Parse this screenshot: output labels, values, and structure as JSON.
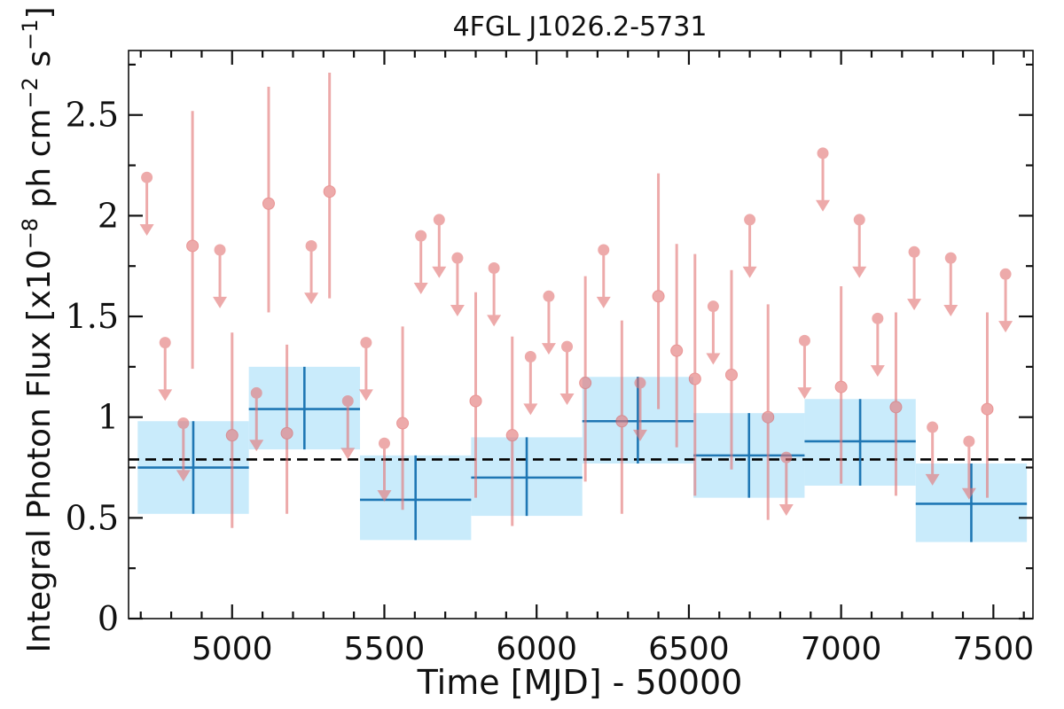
{
  "chart_data": {
    "type": "scatter",
    "title": "4FGL J1026.2-5731",
    "xlabel": "Time [MJD] - 50000",
    "ylabel_main": "Integral Photon Flux [x10",
    "ylabel_exp1": "−8",
    "ylabel_mid": " ph cm",
    "ylabel_exp2": "−2",
    "ylabel_mid2": " s",
    "ylabel_exp3": "−1",
    "ylabel_end": "]",
    "xlim": [
      4660,
      7630
    ],
    "ylim": [
      0,
      2.82
    ],
    "xticks": [
      5000,
      5500,
      6000,
      6500,
      7000,
      7500
    ],
    "xtick_labels": [
      "5000",
      "5500",
      "6000",
      "6500",
      "7000",
      "7500"
    ],
    "yticks": [
      0,
      0.5,
      1,
      1.5,
      2,
      2.5
    ],
    "ytick_labels": [
      "0",
      "0.5",
      "1",
      "1.5",
      "2",
      "2.5"
    ],
    "x_minor_step": 100,
    "y_minor_step": 0.25,
    "reference_line": 0.79,
    "colors": {
      "fine_points": "#e37777",
      "coarse_bins": "#1f77b4",
      "coarse_band": "#c9ebfb",
      "reference_line": "#000000"
    },
    "coarse_bins": [
      {
        "x0": 4690,
        "x1": 5055,
        "y": 0.75,
        "ylo": 0.52,
        "yhi": 0.98
      },
      {
        "x0": 5055,
        "x1": 5420,
        "y": 1.04,
        "ylo": 0.84,
        "yhi": 1.25
      },
      {
        "x0": 5420,
        "x1": 5785,
        "y": 0.59,
        "ylo": 0.39,
        "yhi": 0.81
      },
      {
        "x0": 5785,
        "x1": 6150,
        "y": 0.7,
        "ylo": 0.51,
        "yhi": 0.9
      },
      {
        "x0": 6150,
        "x1": 6515,
        "y": 0.98,
        "ylo": 0.77,
        "yhi": 1.2
      },
      {
        "x0": 6515,
        "x1": 6880,
        "y": 0.81,
        "ylo": 0.6,
        "yhi": 1.02
      },
      {
        "x0": 6880,
        "x1": 7245,
        "y": 0.88,
        "ylo": 0.66,
        "yhi": 1.09
      },
      {
        "x0": 7245,
        "x1": 7610,
        "y": 0.57,
        "ylo": 0.38,
        "yhi": 0.77
      }
    ],
    "upper_limits": [
      {
        "x": 4720,
        "y": 2.19
      },
      {
        "x": 4780,
        "y": 1.37
      },
      {
        "x": 4840,
        "y": 0.97
      },
      {
        "x": 4960,
        "y": 1.83
      },
      {
        "x": 5080,
        "y": 1.12
      },
      {
        "x": 5260,
        "y": 1.85
      },
      {
        "x": 5380,
        "y": 1.08
      },
      {
        "x": 5440,
        "y": 1.37
      },
      {
        "x": 5500,
        "y": 0.87
      },
      {
        "x": 5620,
        "y": 1.9
      },
      {
        "x": 5680,
        "y": 1.98
      },
      {
        "x": 5740,
        "y": 1.79
      },
      {
        "x": 5860,
        "y": 1.74
      },
      {
        "x": 5980,
        "y": 1.3
      },
      {
        "x": 6040,
        "y": 1.6
      },
      {
        "x": 6100,
        "y": 1.35
      },
      {
        "x": 6220,
        "y": 1.83
      },
      {
        "x": 6340,
        "y": 1.17
      },
      {
        "x": 6580,
        "y": 1.55
      },
      {
        "x": 6700,
        "y": 1.98
      },
      {
        "x": 6820,
        "y": 0.8
      },
      {
        "x": 6880,
        "y": 1.38
      },
      {
        "x": 6940,
        "y": 2.31
      },
      {
        "x": 7060,
        "y": 1.98
      },
      {
        "x": 7120,
        "y": 1.49
      },
      {
        "x": 7240,
        "y": 1.82
      },
      {
        "x": 7300,
        "y": 0.95
      },
      {
        "x": 7360,
        "y": 1.79
      },
      {
        "x": 7420,
        "y": 0.88
      },
      {
        "x": 7540,
        "y": 1.71
      }
    ],
    "detections": [
      {
        "x": 4870,
        "y": 1.85,
        "ylo": 1.24,
        "yhi": 2.52
      },
      {
        "x": 5000,
        "y": 0.91,
        "ylo": 0.45,
        "yhi": 1.42
      },
      {
        "x": 5120,
        "y": 2.06,
        "ylo": 1.52,
        "yhi": 2.64
      },
      {
        "x": 5180,
        "y": 0.92,
        "ylo": 0.52,
        "yhi": 1.36
      },
      {
        "x": 5320,
        "y": 2.12,
        "ylo": 1.59,
        "yhi": 2.71
      },
      {
        "x": 5560,
        "y": 0.97,
        "ylo": 0.54,
        "yhi": 1.45
      },
      {
        "x": 5800,
        "y": 1.08,
        "ylo": 0.6,
        "yhi": 1.62
      },
      {
        "x": 5920,
        "y": 0.91,
        "ylo": 0.46,
        "yhi": 1.4
      },
      {
        "x": 6160,
        "y": 1.17,
        "ylo": 0.68,
        "yhi": 1.7
      },
      {
        "x": 6280,
        "y": 0.98,
        "ylo": 0.52,
        "yhi": 1.48
      },
      {
        "x": 6400,
        "y": 1.6,
        "ylo": 1.04,
        "yhi": 2.21
      },
      {
        "x": 6460,
        "y": 1.33,
        "ylo": 0.85,
        "yhi": 1.86
      },
      {
        "x": 6520,
        "y": 1.19,
        "ylo": 0.61,
        "yhi": 1.81
      },
      {
        "x": 6640,
        "y": 1.21,
        "ylo": 0.74,
        "yhi": 1.73
      },
      {
        "x": 6760,
        "y": 1.0,
        "ylo": 0.49,
        "yhi": 1.56
      },
      {
        "x": 7000,
        "y": 1.15,
        "ylo": 0.67,
        "yhi": 1.65
      },
      {
        "x": 7180,
        "y": 1.05,
        "ylo": 0.61,
        "yhi": 1.52
      },
      {
        "x": 7480,
        "y": 1.04,
        "ylo": 0.6,
        "yhi": 1.52
      }
    ]
  }
}
